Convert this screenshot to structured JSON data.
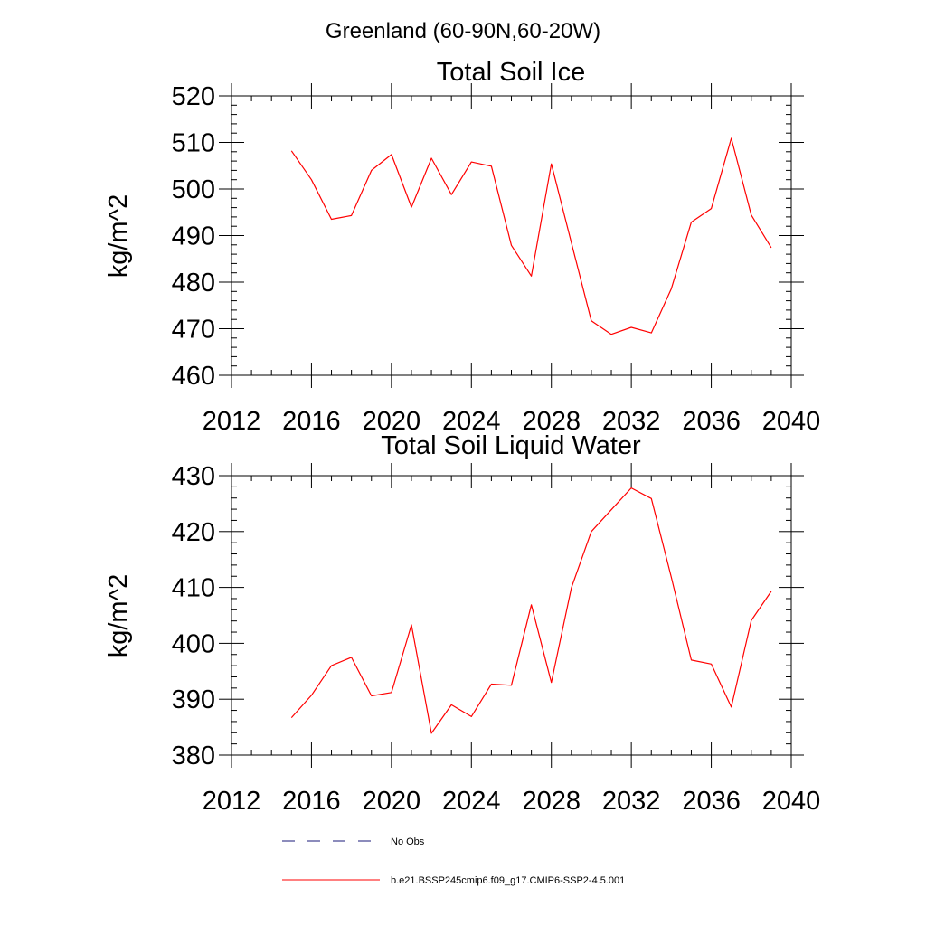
{
  "figure_title": "Greenland (60-90N,60-20W)",
  "legend": {
    "entries": [
      {
        "label": "No Obs",
        "style": "dashed",
        "color": "#1a1a7a"
      },
      {
        "label": "b.e21.BSSP245cmip6.f09_g17.CMIP6-SSP2-4.5.001",
        "style": "solid",
        "color": "#ff0000"
      }
    ]
  },
  "chart_data": [
    {
      "type": "line",
      "title": "Total Soil Ice",
      "xlabel": "",
      "ylabel": "kg/m^2",
      "xlim": [
        2012,
        2040
      ],
      "ylim": [
        460,
        520
      ],
      "xticks": [
        2012,
        2016,
        2020,
        2024,
        2028,
        2032,
        2036,
        2040
      ],
      "yticks": [
        460,
        470,
        480,
        490,
        500,
        510,
        520
      ],
      "grid": false,
      "series": [
        {
          "name": "b.e21.BSSP245cmip6.f09_g17.CMIP6-SSP2-4.5.001",
          "color": "#ff0000",
          "x": [
            2015,
            2016,
            2017,
            2018,
            2019,
            2020,
            2021,
            2022,
            2023,
            2024,
            2025,
            2026,
            2027,
            2028,
            2029,
            2030,
            2031,
            2032,
            2033,
            2034,
            2035,
            2036,
            2037,
            2038,
            2039
          ],
          "values": [
            508.2,
            502.0,
            493.5,
            494.3,
            504.0,
            507.4,
            496.1,
            506.6,
            498.8,
            505.8,
            504.9,
            487.9,
            481.3,
            505.4,
            488.5,
            471.7,
            468.8,
            470.3,
            469.1,
            478.6,
            492.9,
            495.8,
            510.9,
            494.4,
            487.4
          ]
        }
      ]
    },
    {
      "type": "line",
      "title": "Total Soil Liquid Water",
      "xlabel": "",
      "ylabel": "kg/m^2",
      "xlim": [
        2012,
        2040
      ],
      "ylim": [
        380,
        430
      ],
      "xticks": [
        2012,
        2016,
        2020,
        2024,
        2028,
        2032,
        2036,
        2040
      ],
      "yticks": [
        380,
        390,
        400,
        410,
        420,
        430
      ],
      "grid": false,
      "series": [
        {
          "name": "b.e21.BSSP245cmip6.f09_g17.CMIP6-SSP2-4.5.001",
          "color": "#ff0000",
          "x": [
            2015,
            2016,
            2017,
            2018,
            2019,
            2020,
            2021,
            2022,
            2023,
            2024,
            2025,
            2026,
            2027,
            2028,
            2029,
            2030,
            2031,
            2032,
            2033,
            2034,
            2035,
            2036,
            2037,
            2038,
            2039
          ],
          "values": [
            386.7,
            390.7,
            396.0,
            397.5,
            390.6,
            391.2,
            403.3,
            383.9,
            389.0,
            386.9,
            392.7,
            392.5,
            406.9,
            393.0,
            409.9,
            420.0,
            423.9,
            427.8,
            425.9,
            411.8,
            397.0,
            396.3,
            388.6,
            404.1,
            409.3
          ]
        }
      ]
    }
  ]
}
